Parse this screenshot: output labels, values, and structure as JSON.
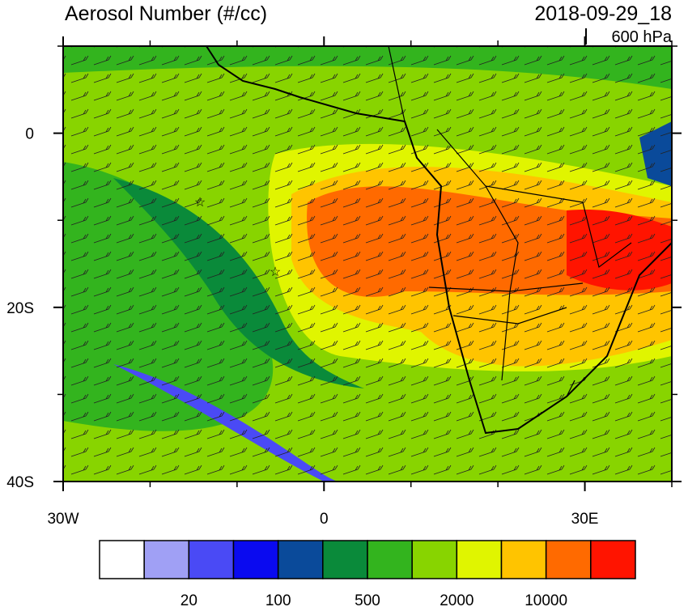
{
  "map": {
    "title": "Aerosol Number (#/cc)",
    "date": "2018-09-29_18",
    "level": "600 hPa",
    "xlim": [
      -30,
      40
    ],
    "ylim": [
      -40,
      10
    ],
    "xticks": [
      {
        "value": -30,
        "label": "30W"
      },
      0,
      {
        "value": 30,
        "label": "30E"
      }
    ],
    "xminor": [
      -20,
      -10,
      10,
      20,
      40
    ],
    "yticks": [
      0,
      {
        "value": -20,
        "label": "20S"
      },
      {
        "value": -40,
        "label": "40S"
      }
    ],
    "yminor": [
      10,
      -10,
      -30
    ],
    "colorbar": {
      "colors": [
        "#ffffff",
        "#a0a0f5",
        "#4a4af5",
        "#0a0af0",
        "#0a4a9a",
        "#0a8a3a",
        "#33b41e",
        "#88d400",
        "#e0f500",
        "#ffc400",
        "#ff6a00",
        "#ff1400"
      ],
      "levels": [
        20,
        100,
        500,
        2000,
        10000
      ]
    }
  }
}
